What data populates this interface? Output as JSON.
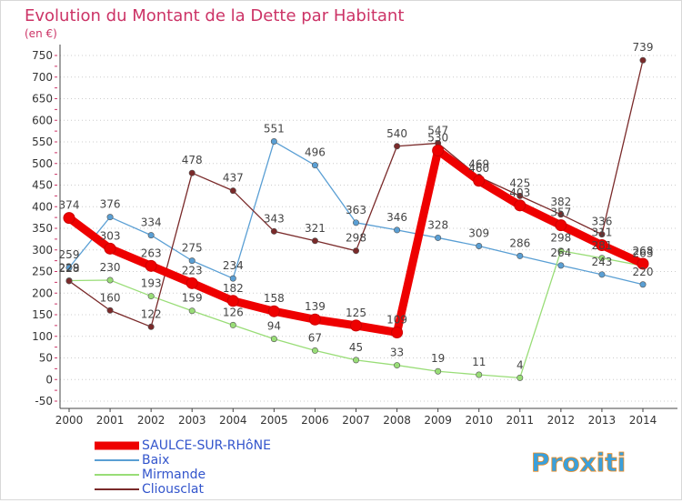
{
  "chart_data": {
    "type": "line",
    "title": "Evolution du Montant de la Dette par Habitant",
    "subtitle": "(en €)",
    "x": [
      "2000",
      "2001",
      "2002",
      "2003",
      "2004",
      "2005",
      "2006",
      "2007",
      "2008",
      "2009",
      "2010",
      "2011",
      "2012",
      "2013",
      "2014"
    ],
    "ylim": [
      -50,
      750
    ],
    "yticks": [
      -50,
      0,
      50,
      100,
      150,
      200,
      250,
      300,
      350,
      400,
      450,
      500,
      550,
      600,
      650,
      700,
      750
    ],
    "grid": "horizontal-dotted",
    "legend_position": "bottom-left",
    "series": [
      {
        "name": "SAULCE-SUR-RHôNE",
        "color": "#ee0000",
        "values": [
          374,
          303,
          263,
          223,
          182,
          158,
          139,
          125,
          109,
          530,
          460,
          403,
          357,
          311,
          268
        ]
      },
      {
        "name": "Baix",
        "color": "#5a9fd4",
        "values": [
          259,
          376,
          334,
          275,
          234,
          551,
          496,
          363,
          346,
          328,
          309,
          286,
          264,
          243,
          220
        ]
      },
      {
        "name": "Mirmande",
        "color": "#99dd77",
        "values": [
          229,
          230,
          193,
          159,
          126,
          94,
          67,
          45,
          33,
          19,
          11,
          4,
          298,
          281,
          263
        ]
      },
      {
        "name": "Cliousclat",
        "color": "#7a2a2a",
        "values": [
          228,
          160,
          122,
          478,
          437,
          343,
          321,
          298,
          540,
          547,
          469,
          425,
          382,
          336,
          739
        ]
      }
    ]
  },
  "logo": {
    "text": "Proxiti"
  }
}
